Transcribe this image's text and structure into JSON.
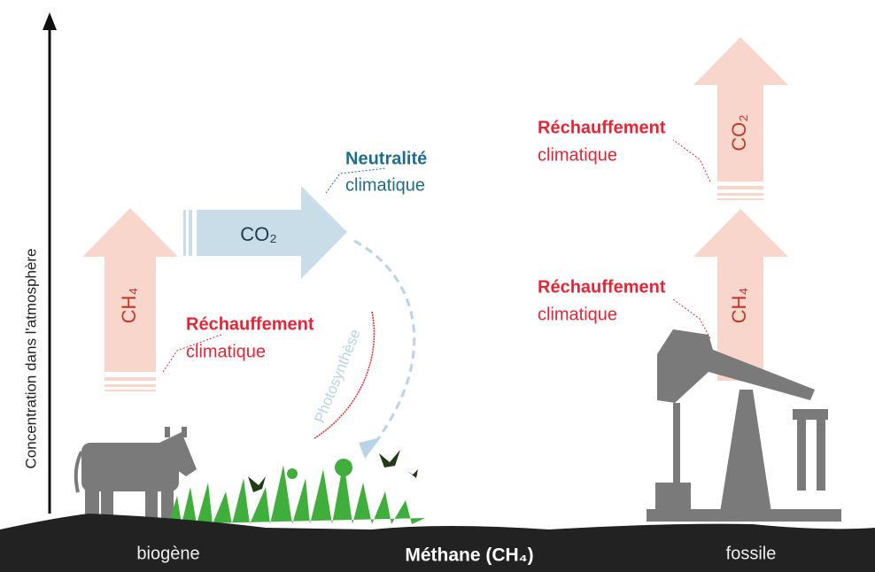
{
  "axis_label": "Concentration dans l'atmosphère",
  "biogenic": {
    "ch4_arrow": "CH₄",
    "co2_arrow": "CO₂",
    "warming": {
      "line1": "Réchauffement",
      "line2": "climatique"
    },
    "neutrality": {
      "line1": "Neutralité",
      "line2": "climatique"
    },
    "photosynthesis": "Photosynthèse"
  },
  "fossil": {
    "co2_arrow": "CO₂",
    "ch4_arrow": "CH₄",
    "warming_top": {
      "line1": "Réchauffement",
      "line2": "climatique"
    },
    "warming_bottom": {
      "line1": "Réchauffement",
      "line2": "climatique"
    }
  },
  "footer": {
    "left": "biogène",
    "center": "Méthane (CH₄)",
    "right": "fossile"
  }
}
